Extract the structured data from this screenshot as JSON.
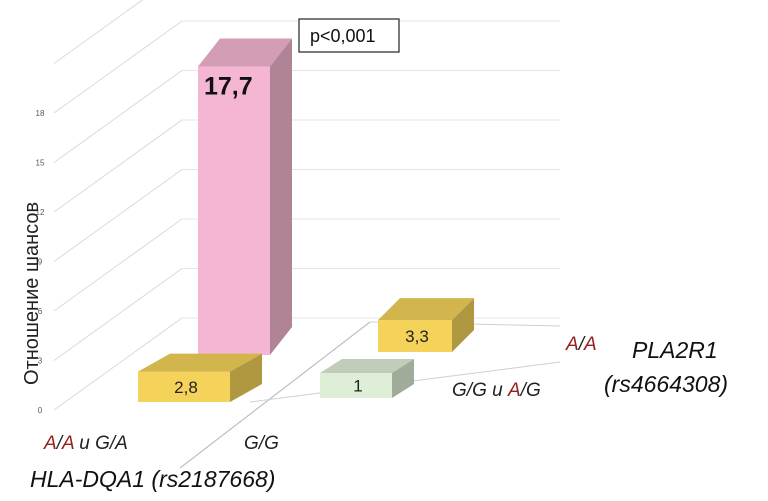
{
  "chart_data": {
    "type": "bar",
    "subtype": "3d-bar",
    "ylabel": "Отношение шансов",
    "yticks": [
      0,
      3,
      6,
      9,
      12,
      15,
      18
    ],
    "ylim": [
      0,
      21
    ],
    "annotation": "p<0,001",
    "x_axis": {
      "name": "HLA-DQA1 (rs2187668)",
      "categories": [
        {
          "text": "A/A и G/A",
          "red_letters": [
            "A",
            "A"
          ]
        },
        {
          "text": "G/G",
          "red_letters": []
        }
      ]
    },
    "z_axis": {
      "name_line1": "PLA2R1",
      "name_line2": "(rs4664308)",
      "categories": [
        {
          "text": "G/G и A/G",
          "red_letters": [
            "A"
          ]
        },
        {
          "text": "A/A",
          "red_letters": [
            "A",
            "A"
          ]
        }
      ]
    },
    "bars": [
      {
        "x": "A/A и G/A",
        "z": "G/G и A/G",
        "value": 2.8,
        "label": "2,8",
        "color": "#f5d35a"
      },
      {
        "x": "A/A и G/A",
        "z": "A/A",
        "value": 17.7,
        "label": "17,7",
        "color": "#f4b6d2"
      },
      {
        "x": "G/G",
        "z": "G/G и A/G",
        "value": 1,
        "label": "1",
        "color": "#dfeed6"
      },
      {
        "x": "G/G",
        "z": "A/A",
        "value": 3.3,
        "label": "3,3",
        "color": "#f5d35a"
      }
    ]
  }
}
